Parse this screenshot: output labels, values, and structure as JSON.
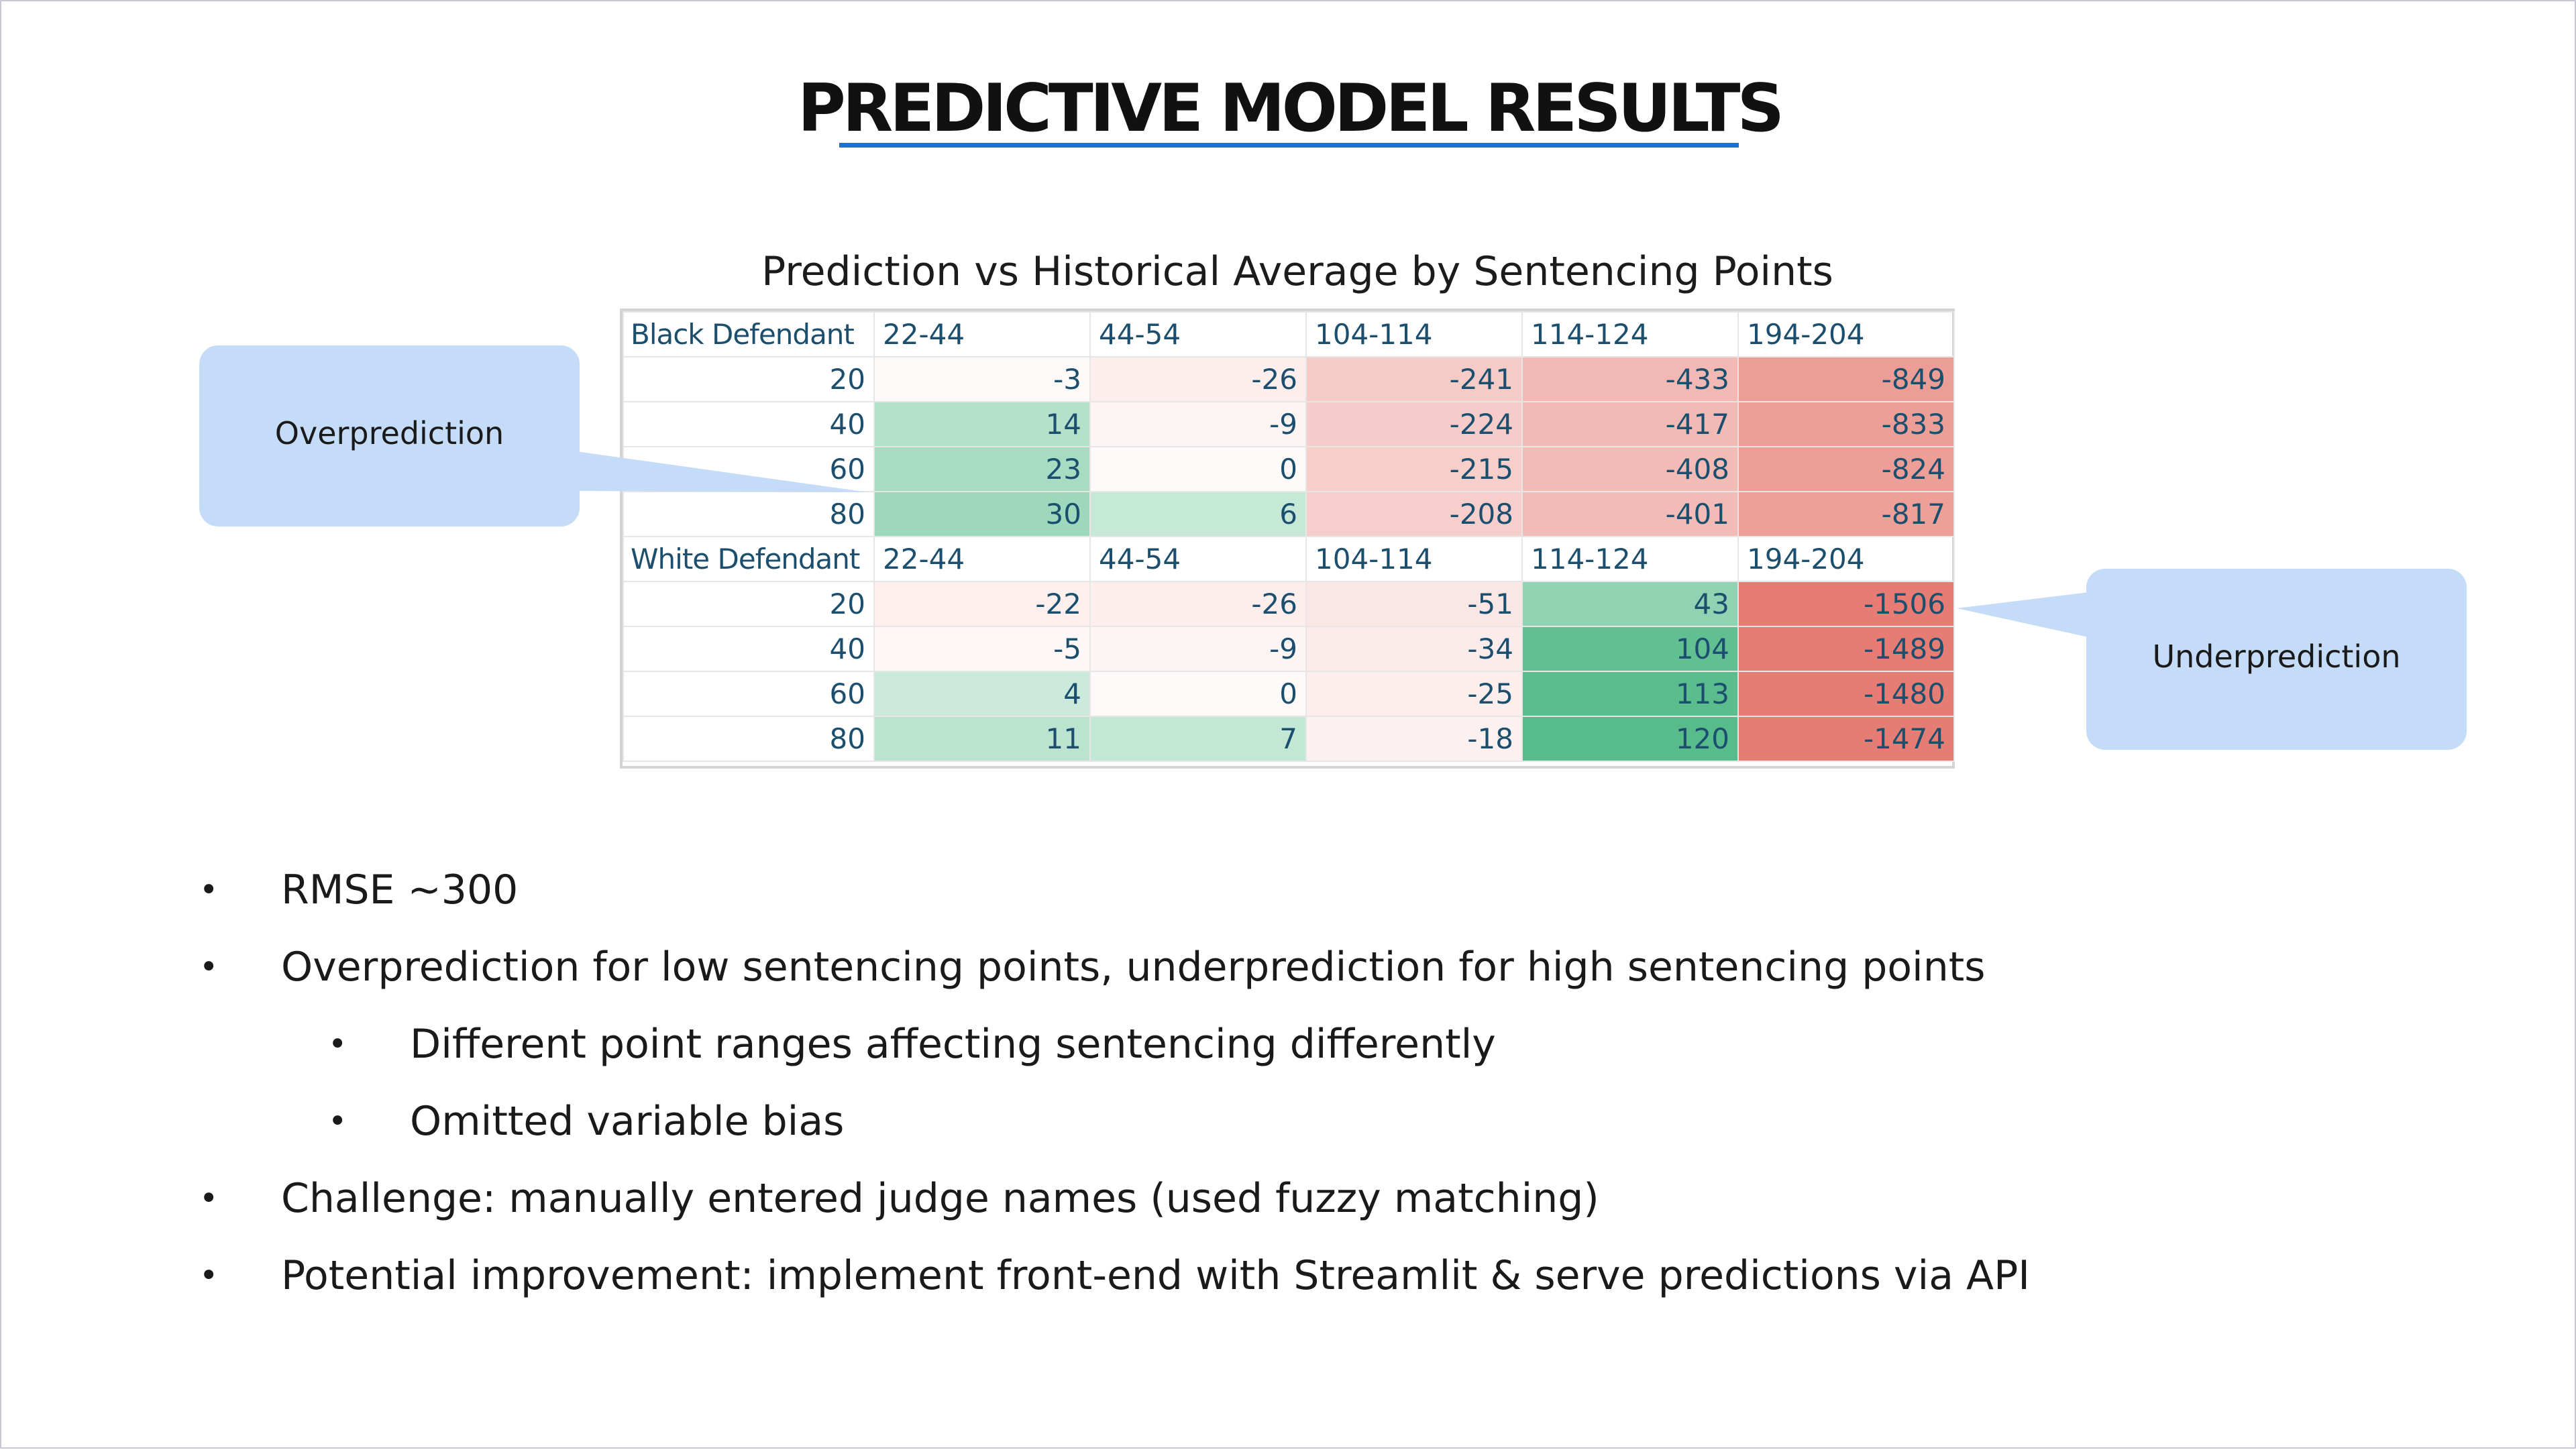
{
  "title": "PREDICTIVE MODEL RESULTS",
  "table_title": "Prediction vs Historical Average by Sentencing Points",
  "callouts": {
    "left": "Overprediction",
    "right": "Underprediction"
  },
  "colors": {
    "accent": "#1f6fd0",
    "callout": "#c5dcf8",
    "positive": "#57bb8a",
    "negative": "#e67c73",
    "table_text": "#1c4f6e"
  },
  "table": {
    "groups": [
      {
        "label": "Black Defendant",
        "columns": [
          "22-44",
          "44-54",
          "104-114",
          "114-124",
          "194-204"
        ],
        "rows": [
          {
            "label": "20",
            "values": [
              "-3",
              "-26",
              "-241",
              "-433",
              "-849"
            ]
          },
          {
            "label": "40",
            "values": [
              "14",
              "-9",
              "-224",
              "-417",
              "-833"
            ]
          },
          {
            "label": "60",
            "values": [
              "23",
              "0",
              "-215",
              "-408",
              "-824"
            ]
          },
          {
            "label": "80",
            "values": [
              "30",
              "6",
              "-208",
              "-401",
              "-817"
            ]
          }
        ]
      },
      {
        "label": "White Defendant",
        "columns": [
          "22-44",
          "44-54",
          "104-114",
          "114-124",
          "194-204"
        ],
        "rows": [
          {
            "label": "20",
            "values": [
              "-22",
              "-26",
              "-51",
              "43",
              "-1506"
            ]
          },
          {
            "label": "40",
            "values": [
              "-5",
              "-9",
              "-34",
              "104",
              "-1489"
            ]
          },
          {
            "label": "60",
            "values": [
              "4",
              "0",
              "-25",
              "113",
              "-1480"
            ]
          },
          {
            "label": "80",
            "values": [
              "11",
              "7",
              "-18",
              "120",
              "-1474"
            ]
          }
        ]
      }
    ]
  },
  "bullets": [
    {
      "level": 1,
      "symbol": "•",
      "text": "RMSE ~300"
    },
    {
      "level": 1,
      "symbol": "•",
      "text": "Overprediction for low sentencing points, underprediction for high sentencing points"
    },
    {
      "level": 2,
      "symbol": "•",
      "text": "Different point ranges affecting sentencing differently"
    },
    {
      "level": 2,
      "symbol": "•",
      "text": "Omitted variable bias"
    },
    {
      "level": 1,
      "symbol": "•",
      "text": "Challenge: manually entered judge names (used fuzzy matching)"
    },
    {
      "level": 1,
      "symbol": "•",
      "text": "Potential improvement: implement front-end with Streamlit & serve predictions via API"
    }
  ]
}
